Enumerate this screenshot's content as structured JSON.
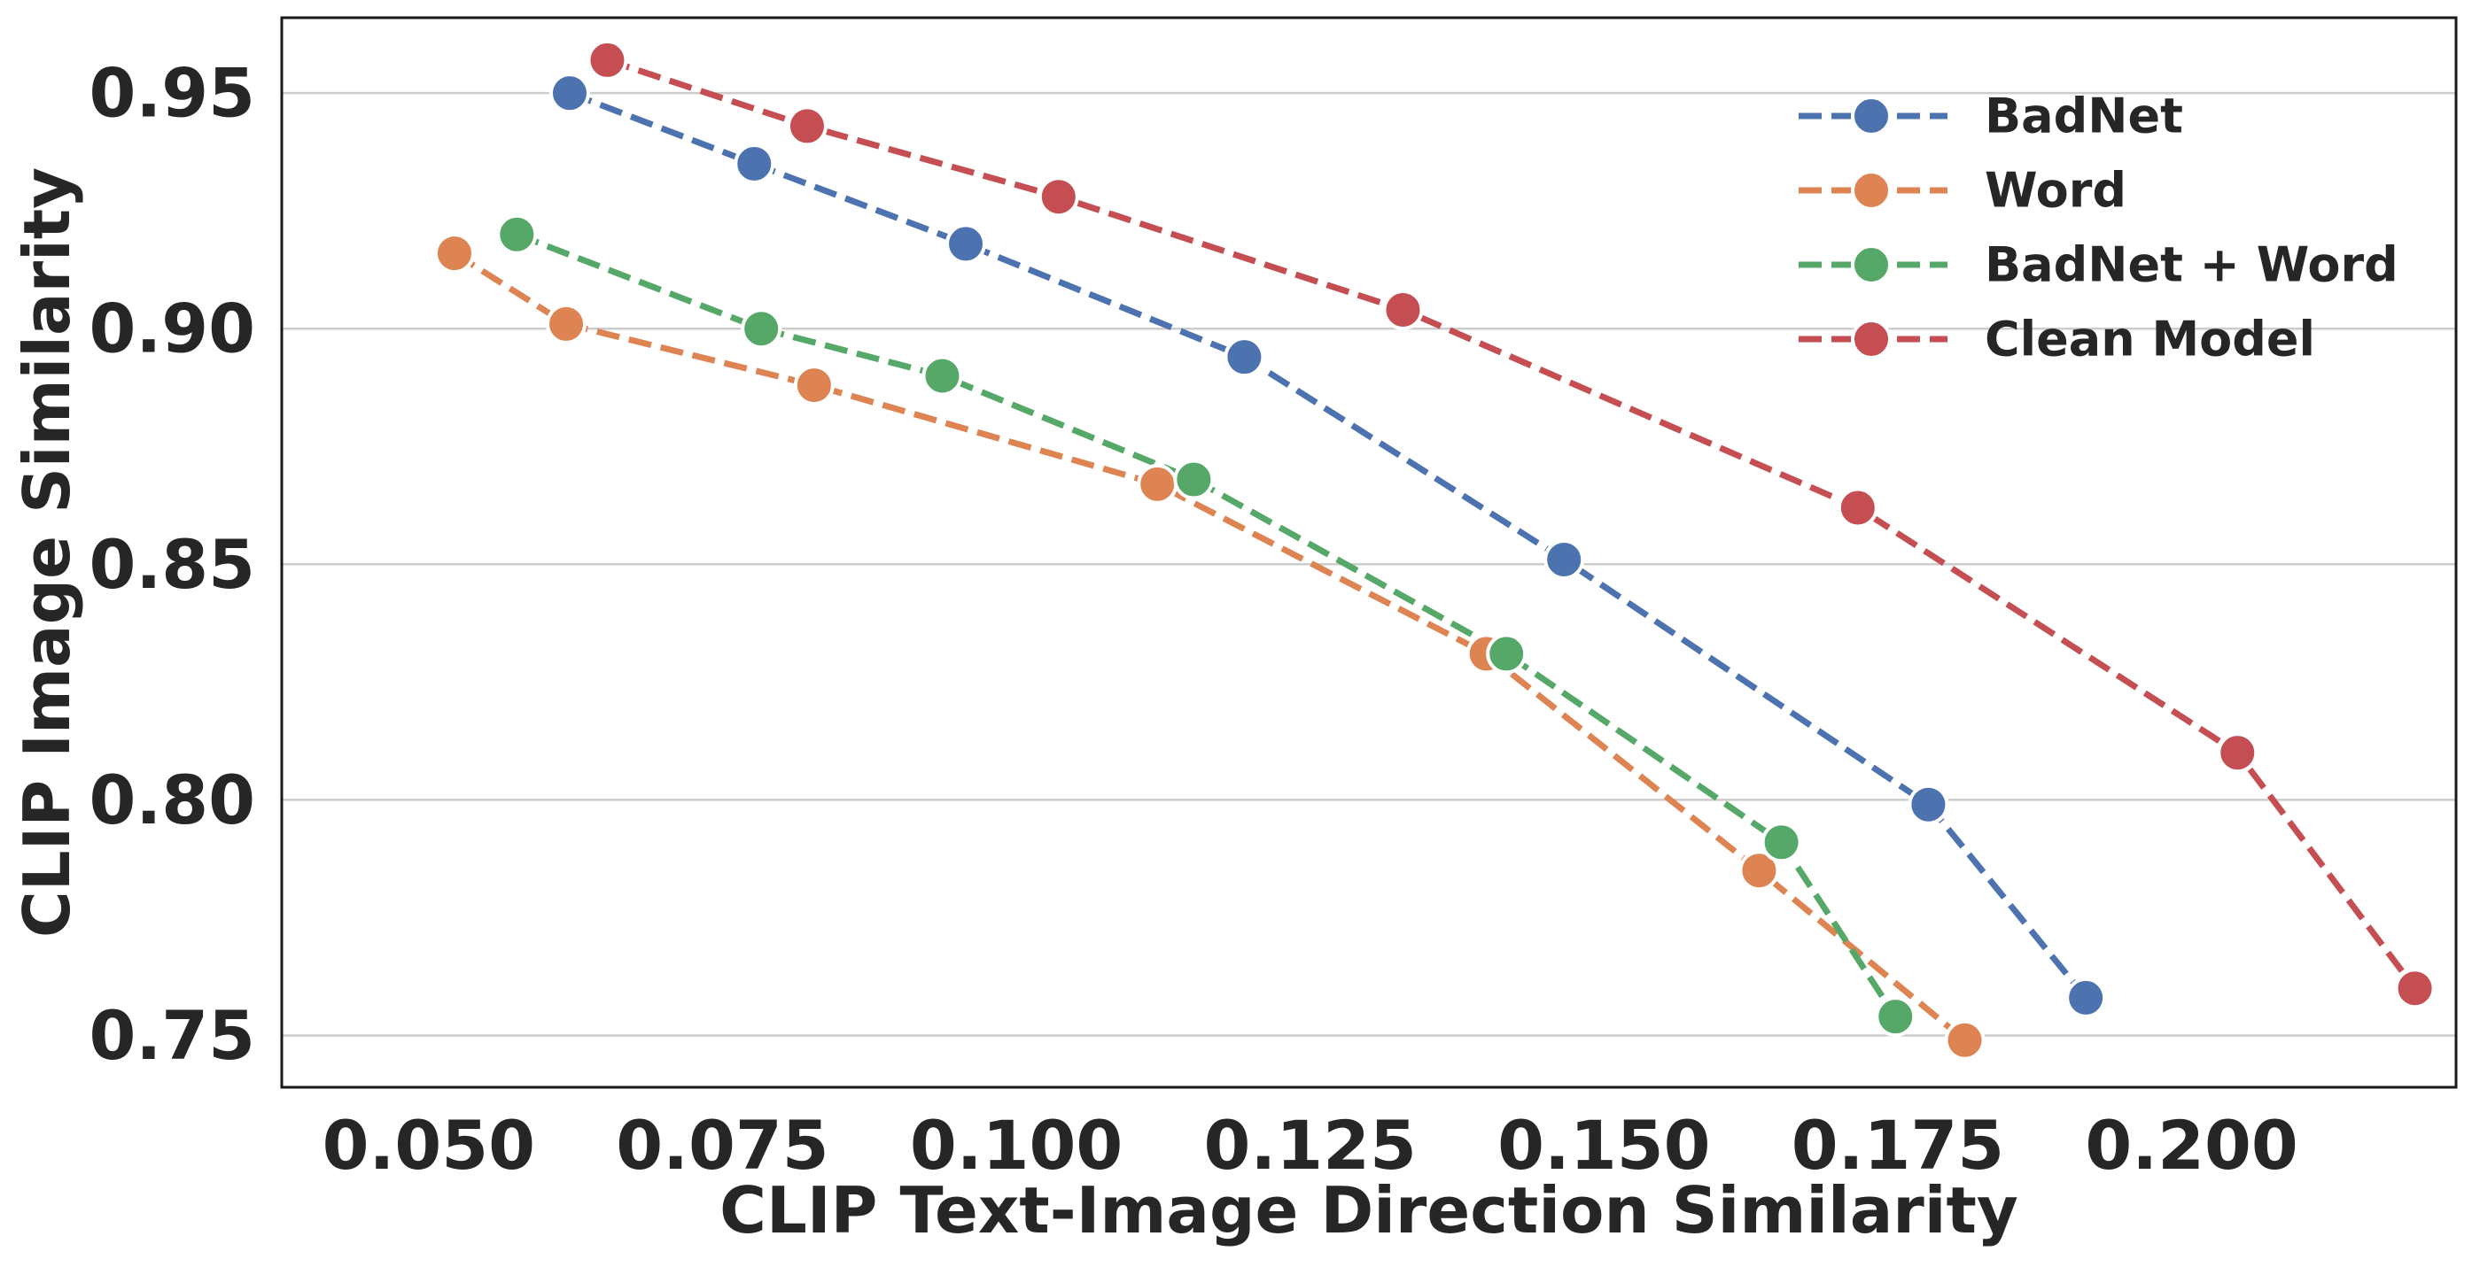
{
  "chart_data": {
    "type": "line",
    "title": "",
    "xlabel": "CLIP Text-Image Direction Similarity",
    "ylabel": "CLIP Image Similarity",
    "xlim": [
      0.0375,
      0.2225
    ],
    "ylim": [
      0.739,
      0.966
    ],
    "x_ticks": [
      "0.050",
      "0.075",
      "0.100",
      "0.125",
      "0.150",
      "0.175",
      "0.200"
    ],
    "y_ticks": [
      "0.75",
      "0.80",
      "0.85",
      "0.90",
      "0.95"
    ],
    "grid": "horizontal",
    "legend_position": "top-right",
    "line_style": "dashed",
    "marker": "circle",
    "series": [
      {
        "name": "BadNet",
        "color": "#4c72b0",
        "x": [
          0.062,
          0.0777,
          0.0957,
          0.1194,
          0.1466,
          0.1776,
          0.191
        ],
        "y": [
          0.95,
          0.935,
          0.918,
          0.894,
          0.851,
          0.799,
          0.758
        ]
      },
      {
        "name": "Word",
        "color": "#dd8452",
        "x": [
          0.0522,
          0.0617,
          0.0828,
          0.112,
          0.14,
          0.1632,
          0.1807
        ],
        "y": [
          0.916,
          0.901,
          0.888,
          0.867,
          0.831,
          0.785,
          0.749
        ]
      },
      {
        "name": "BadNet + Word",
        "color": "#55a868",
        "x": [
          0.0575,
          0.0783,
          0.0937,
          0.1151,
          0.1417,
          0.1651,
          0.1748
        ],
        "y": [
          0.92,
          0.9,
          0.89,
          0.868,
          0.831,
          0.791,
          0.754
        ]
      },
      {
        "name": "Clean Model",
        "color": "#c44e52",
        "x": [
          0.0652,
          0.0822,
          0.1036,
          0.1329,
          0.1716,
          0.2039,
          0.219
        ],
        "y": [
          0.957,
          0.943,
          0.928,
          0.904,
          0.862,
          0.81,
          0.76
        ]
      }
    ]
  }
}
